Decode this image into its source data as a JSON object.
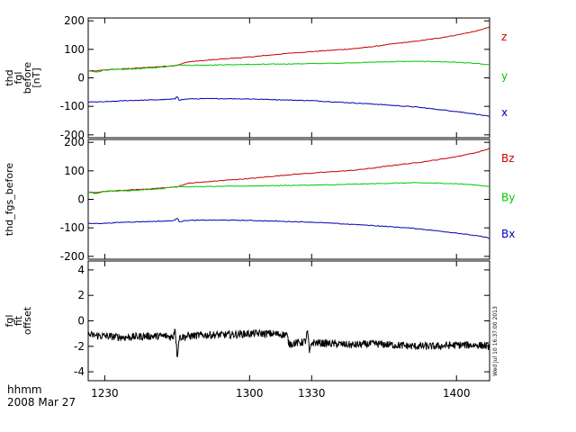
{
  "colors": {
    "x": "#0000b4",
    "y": "#00c800",
    "z": "#c80000",
    "black": "#000000"
  },
  "x_axis": {
    "ticks": [
      {
        "value": 1230,
        "label": "1230"
      },
      {
        "value": 1300,
        "label": "1300"
      },
      {
        "value": 1330,
        "label": "1330"
      },
      {
        "value": 1400,
        "label": "1400"
      }
    ],
    "range": [
      1222,
      1416
    ]
  },
  "footer": {
    "line1": "hhmm",
    "line2": "2008 Mar 27"
  },
  "timestamp": "Wed Jul 10 16:37:00 2013",
  "chart_data": [
    {
      "type": "line",
      "ylabel": [
        "thd",
        "fgl",
        "before",
        "[nT]"
      ],
      "ylim": [
        -210,
        210
      ],
      "yticks": [
        {
          "value": 200,
          "label": "200"
        },
        {
          "value": 100,
          "label": "100"
        },
        {
          "value": 0,
          "label": "0"
        },
        {
          "value": -100,
          "label": "-100"
        },
        {
          "value": -200,
          "label": "-200"
        }
      ],
      "series": [
        {
          "name": "z",
          "color": "#c80000",
          "x": [
            1222,
            1226,
            1230,
            1240,
            1250,
            1258,
            1262,
            1265,
            1270,
            1280,
            1290,
            1300,
            1310,
            1320,
            1330,
            1340,
            1350,
            1360,
            1370,
            1380,
            1390,
            1400,
            1410,
            1416
          ],
          "y": [
            25,
            24,
            28,
            32,
            36,
            40,
            42,
            44,
            56,
            62,
            68,
            73,
            80,
            87,
            92,
            97,
            102,
            110,
            120,
            128,
            138,
            150,
            165,
            178
          ]
        },
        {
          "name": "y",
          "color": "#00c800",
          "x": [
            1222,
            1226,
            1230,
            1240,
            1250,
            1258,
            1262,
            1265,
            1270,
            1280,
            1290,
            1300,
            1310,
            1320,
            1330,
            1340,
            1350,
            1360,
            1370,
            1380,
            1390,
            1400,
            1410,
            1416
          ],
          "y": [
            25,
            20,
            28,
            30,
            34,
            38,
            42,
            46,
            44,
            45,
            46,
            47,
            48,
            49,
            50,
            51,
            53,
            55,
            57,
            58,
            57,
            55,
            50,
            45
          ]
        },
        {
          "name": "x",
          "color": "#0000b4",
          "x": [
            1222,
            1230,
            1240,
            1250,
            1260,
            1264,
            1265,
            1266,
            1270,
            1280,
            1290,
            1300,
            1310,
            1320,
            1330,
            1340,
            1350,
            1360,
            1370,
            1380,
            1390,
            1400,
            1410,
            1416
          ],
          "y": [
            -85,
            -84,
            -80,
            -78,
            -76,
            -74,
            -62,
            -78,
            -74,
            -73,
            -73,
            -74,
            -76,
            -78,
            -80,
            -84,
            -88,
            -92,
            -97,
            -102,
            -110,
            -118,
            -128,
            -136
          ]
        }
      ]
    },
    {
      "type": "line",
      "ylabel": [
        "thd_fgs_before"
      ],
      "ylim": [
        -210,
        210
      ],
      "yticks": [
        {
          "value": 200,
          "label": "200"
        },
        {
          "value": 100,
          "label": "100"
        },
        {
          "value": 0,
          "label": "0"
        },
        {
          "value": -100,
          "label": "-100"
        },
        {
          "value": -200,
          "label": "-200"
        }
      ],
      "series": [
        {
          "name": "Bz",
          "color": "#c80000",
          "x": [
            1222,
            1226,
            1230,
            1240,
            1250,
            1258,
            1262,
            1265,
            1270,
            1280,
            1290,
            1300,
            1310,
            1320,
            1330,
            1340,
            1350,
            1360,
            1370,
            1380,
            1390,
            1400,
            1410,
            1416
          ],
          "y": [
            25,
            24,
            28,
            32,
            36,
            40,
            42,
            44,
            56,
            62,
            68,
            73,
            80,
            87,
            92,
            97,
            102,
            110,
            120,
            128,
            138,
            150,
            165,
            178
          ]
        },
        {
          "name": "By",
          "color": "#00c800",
          "x": [
            1222,
            1226,
            1230,
            1240,
            1250,
            1258,
            1262,
            1265,
            1270,
            1280,
            1290,
            1300,
            1310,
            1320,
            1330,
            1340,
            1350,
            1360,
            1370,
            1380,
            1390,
            1400,
            1410,
            1416
          ],
          "y": [
            25,
            20,
            28,
            30,
            34,
            38,
            42,
            46,
            44,
            45,
            46,
            47,
            48,
            49,
            50,
            51,
            53,
            55,
            57,
            58,
            57,
            55,
            50,
            45
          ]
        },
        {
          "name": "Bx",
          "color": "#0000b4",
          "x": [
            1222,
            1230,
            1240,
            1250,
            1260,
            1264,
            1265,
            1266,
            1270,
            1280,
            1290,
            1300,
            1310,
            1320,
            1330,
            1340,
            1350,
            1360,
            1370,
            1380,
            1390,
            1400,
            1410,
            1416
          ],
          "y": [
            -85,
            -84,
            -80,
            -78,
            -76,
            -74,
            -62,
            -78,
            -74,
            -73,
            -73,
            -74,
            -76,
            -78,
            -80,
            -84,
            -88,
            -92,
            -97,
            -102,
            -110,
            -118,
            -128,
            -136
          ]
        }
      ]
    },
    {
      "type": "line",
      "ylabel": [
        "fgl",
        "fit",
        "offset"
      ],
      "ylim": [
        -4.7,
        4.7
      ],
      "yticks": [
        {
          "value": 4,
          "label": "4"
        },
        {
          "value": 2,
          "label": "2"
        },
        {
          "value": 0,
          "label": "0"
        },
        {
          "value": -2,
          "label": "-2"
        },
        {
          "value": -4,
          "label": "-4"
        }
      ],
      "series": [
        {
          "name": "",
          "color": "#000000",
          "x": [
            1222,
            1230,
            1240,
            1250,
            1260,
            1263,
            1264,
            1265,
            1266,
            1270,
            1280,
            1290,
            1300,
            1310,
            1318,
            1319,
            1325,
            1327,
            1328,
            1329,
            1330,
            1340,
            1350,
            1360,
            1370,
            1380,
            1390,
            1400,
            1410,
            1416
          ],
          "y": [
            -1.1,
            -1.2,
            -1.3,
            -1.2,
            -1.2,
            -1.3,
            -0.5,
            -2.8,
            -1.3,
            -1.2,
            -1.1,
            -1.1,
            -1.0,
            -1.0,
            -1.1,
            -1.8,
            -1.7,
            -1.6,
            -0.8,
            -2.6,
            -1.7,
            -1.8,
            -1.9,
            -1.8,
            -1.9,
            -2.0,
            -2.0,
            -1.9,
            -1.9,
            -2.0
          ],
          "noise_amplitude": 0.3
        }
      ]
    }
  ]
}
